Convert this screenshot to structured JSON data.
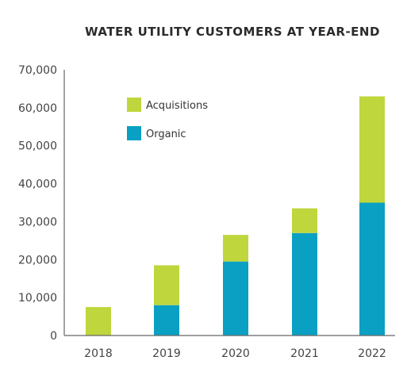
{
  "chart_data": {
    "type": "bar",
    "stacked": true,
    "title": "WATER UTILITY CUSTOMERS AT YEAR-END",
    "xlabel": "",
    "ylabel": "",
    "categories": [
      "2018",
      "2019",
      "2020",
      "2021",
      "2022"
    ],
    "series": [
      {
        "name": "Organic",
        "color": "#0aa0c3",
        "values": [
          0,
          8000,
          19500,
          27000,
          35000
        ]
      },
      {
        "name": "Acquisitions",
        "color": "#bfd63c",
        "values": [
          7500,
          10500,
          7000,
          6500,
          28000
        ]
      }
    ],
    "ylim": [
      0,
      70000
    ],
    "yticks": [
      "0",
      "10,000",
      "20,000",
      "30,000",
      "40,000",
      "50,000",
      "60,000",
      "70,000"
    ],
    "ytick_values": [
      0,
      10000,
      20000,
      30000,
      40000,
      50000,
      60000,
      70000
    ],
    "legend": {
      "placement": "top-left",
      "items": [
        {
          "label": "Acquisitions",
          "color": "#bfd63c"
        },
        {
          "label": "Organic",
          "color": "#0aa0c3"
        }
      ]
    },
    "grid": false
  }
}
